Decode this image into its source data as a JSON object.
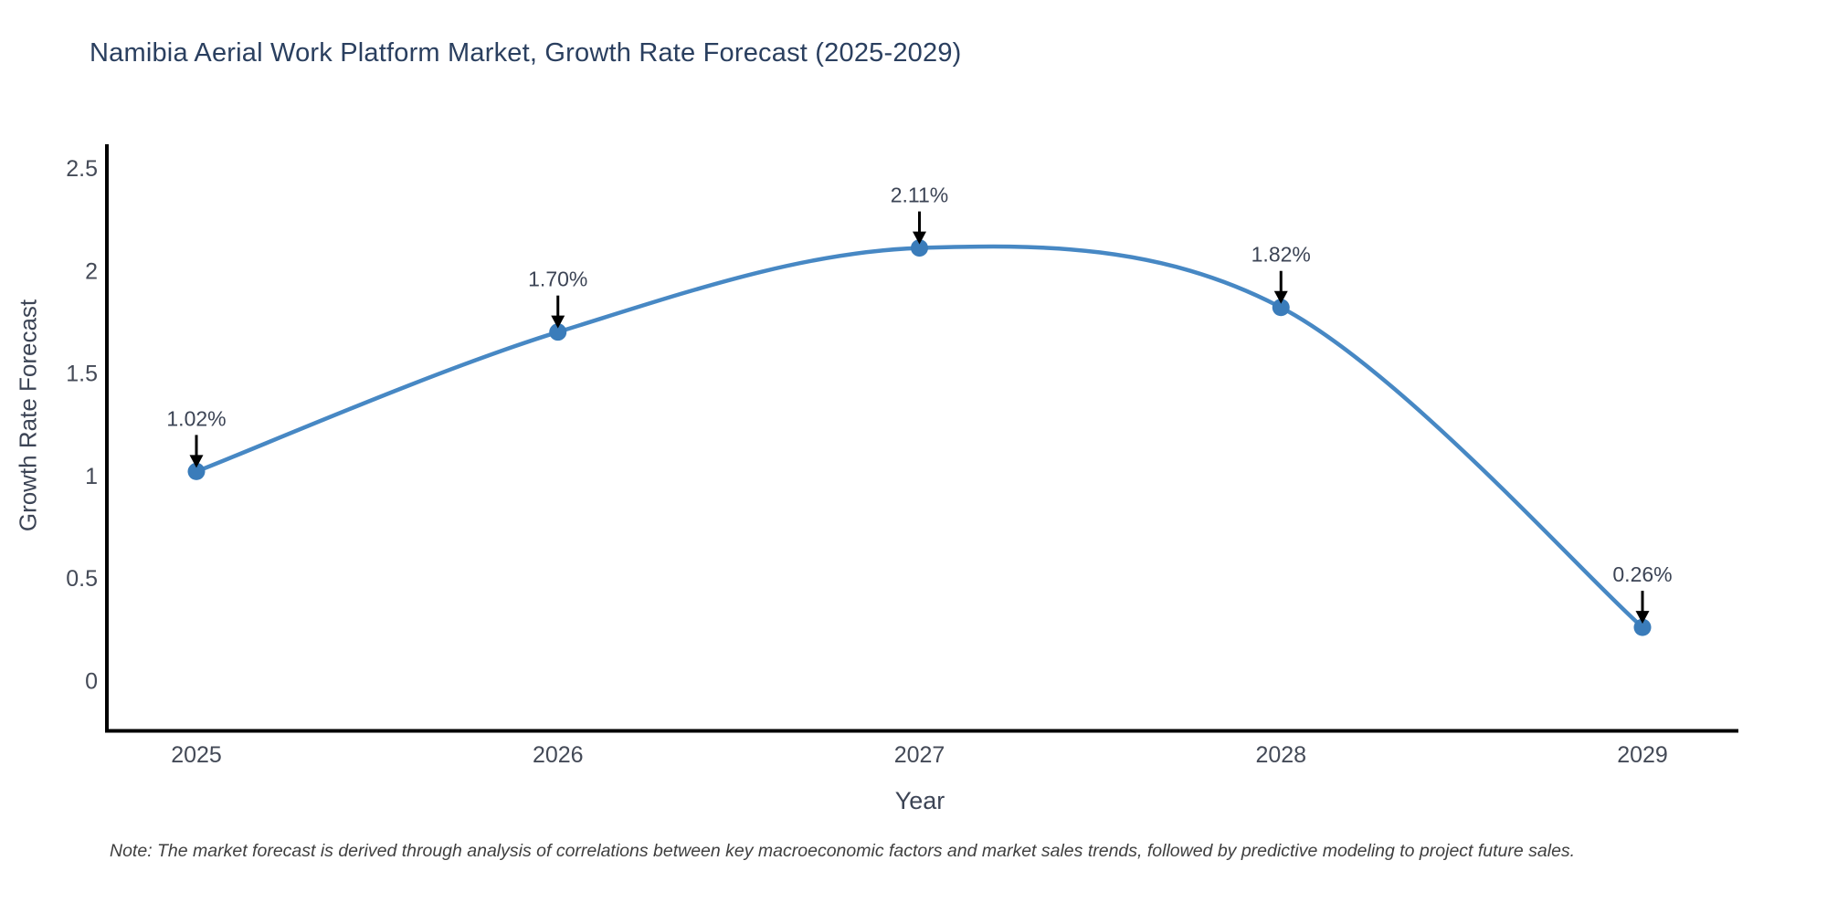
{
  "chart_data": {
    "type": "line",
    "title": "Namibia Aerial Work Platform Market, Growth Rate Forecast (2025-2029)",
    "xlabel": "Year",
    "ylabel": "Growth Rate Forecast",
    "categories": [
      "2025",
      "2026",
      "2027",
      "2028",
      "2029"
    ],
    "series": [
      {
        "name": "Growth Rate Forecast",
        "values": [
          1.02,
          1.7,
          2.11,
          1.82,
          0.26
        ]
      }
    ],
    "point_labels": [
      "1.02%",
      "1.70%",
      "2.11%",
      "1.82%",
      "0.26%"
    ],
    "yticks": [
      "0",
      "0.5",
      "1",
      "1.5",
      "2",
      "2.5"
    ],
    "ytick_values": [
      0,
      0.5,
      1,
      1.5,
      2,
      2.5
    ],
    "ylim": [
      0,
      2.5
    ],
    "line_shape": "spline",
    "grid": false,
    "legend": "none",
    "markers": true,
    "annotation_arrows": true,
    "note": "Note: The market forecast is derived through analysis of correlations between key macroeconomic factors and market sales trends, followed by predictive modeling to project future sales.",
    "colors": {
      "line": "#4788c4",
      "marker": "#3a7cba",
      "arrow": "#000000",
      "axis_line": "#000000",
      "title_text": "#2a3f5f",
      "axis_title_text": "#3c4455",
      "tick_text": "#444a57",
      "annotation_text": "#3c4455",
      "note_text": "#3f3f3f",
      "background": "#ffffff"
    }
  }
}
